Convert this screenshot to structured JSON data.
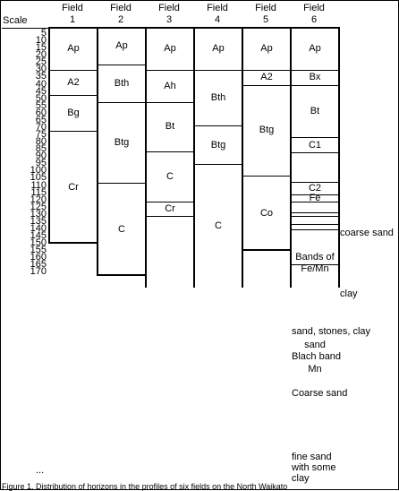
{
  "header": {
    "scale_label": "Scale",
    "fields": [
      {
        "line1": "Field",
        "line2": "1"
      },
      {
        "line1": "Field",
        "line2": "2"
      },
      {
        "line1": "Field",
        "line2": "3"
      },
      {
        "line1": "Field",
        "line2": "4"
      },
      {
        "line1": "Field",
        "line2": "5"
      },
      {
        "line1": "Field",
        "line2": "6"
      }
    ]
  },
  "scale_ticks": [
    "5",
    "10",
    "15",
    "20",
    "25",
    "30",
    "35",
    "40",
    "45",
    "50",
    "55",
    "60",
    "65",
    "70",
    "75",
    "80",
    "85",
    "90",
    "95",
    "100",
    "105",
    "110",
    "115",
    "120",
    "125",
    "130",
    "135",
    "140",
    "145",
    "150",
    "155",
    "160",
    "165",
    "170",
    "..."
  ],
  "columns": [
    {
      "field": "Field 1",
      "depth_bottom": 150,
      "horizons": [
        {
          "label": "Ap",
          "from": 0,
          "to": 30
        },
        {
          "label": "A2",
          "from": 30,
          "to": 47
        },
        {
          "label": "Bg",
          "from": 47,
          "to": 72
        },
        {
          "label": "Cr",
          "from": 72,
          "to": 150
        }
      ]
    },
    {
      "field": "Field 2",
      "depth_bottom": 172,
      "horizons": [
        {
          "label": "Ap",
          "from": 0,
          "to": 26
        },
        {
          "label": "Bth",
          "from": 26,
          "to": 52
        },
        {
          "label": "Btg",
          "from": 52,
          "to": 108
        },
        {
          "label": "C",
          "from": 108,
          "to": 172
        }
      ]
    },
    {
      "field": "Field 3",
      "depth_bottom": 180,
      "horizons": [
        {
          "label": "Ap",
          "from": 0,
          "to": 30
        },
        {
          "label": "Ah",
          "from": 30,
          "to": 52
        },
        {
          "label": "Bt",
          "from": 52,
          "to": 86
        },
        {
          "label": "C",
          "from": 86,
          "to": 121
        },
        {
          "label": "Cr",
          "from": 121,
          "to": 131
        },
        {
          "label": "",
          "from": 131,
          "to": 180
        }
      ]
    },
    {
      "field": "Field 4",
      "depth_bottom": 180,
      "horizons": [
        {
          "label": "Ap",
          "from": 0,
          "to": 30
        },
        {
          "label": "Bth",
          "from": 30,
          "to": 68
        },
        {
          "label": "Btg",
          "from": 68,
          "to": 95
        },
        {
          "label": "C",
          "from": 95,
          "to": 180
        }
      ]
    },
    {
      "field": "Field 5",
      "depth_bottom": 155,
      "horizons": [
        {
          "label": "Ap",
          "from": 0,
          "to": 30
        },
        {
          "label": "A2",
          "from": 30,
          "to": 40
        },
        {
          "label": "Btg",
          "from": 40,
          "to": 103
        },
        {
          "label": "Co",
          "from": 103,
          "to": 155
        }
      ]
    },
    {
      "field": "Field 6",
      "depth_bottom": 180,
      "horizons": [
        {
          "label": "Ap",
          "from": 0,
          "to": 30
        },
        {
          "label": "Bx",
          "from": 30,
          "to": 40
        },
        {
          "label": "Bt",
          "from": 40,
          "to": 76
        },
        {
          "label": "C1",
          "from": 76,
          "to": 87
        },
        {
          "label": "Bands of Fe/Mn",
          "from": 87,
          "to": 107
        },
        {
          "label": "C2",
          "from": 107,
          "to": 116
        },
        {
          "label": "Fe",
          "from": 116,
          "to": 121
        },
        {
          "label": "sand, stones, clay",
          "from": 121,
          "to": 128
        },
        {
          "label": "sand",
          "from": 128,
          "to": 131
        },
        {
          "label": "Blach band",
          "from": 131,
          "to": 136
        },
        {
          "label": "Mn",
          "from": 136,
          "to": 140
        },
        {
          "label": "Coarse sand",
          "from": 140,
          "to": 164
        },
        {
          "label": "fine sand with some clay",
          "from": 164,
          "to": 180
        }
      ]
    }
  ],
  "annotations": {
    "coarse_sand": "coarse sand",
    "clay": "clay"
  },
  "caption_cut": "Figure 1.  Distribution of horizons in the profiles of six fields on the North Waikato"
}
